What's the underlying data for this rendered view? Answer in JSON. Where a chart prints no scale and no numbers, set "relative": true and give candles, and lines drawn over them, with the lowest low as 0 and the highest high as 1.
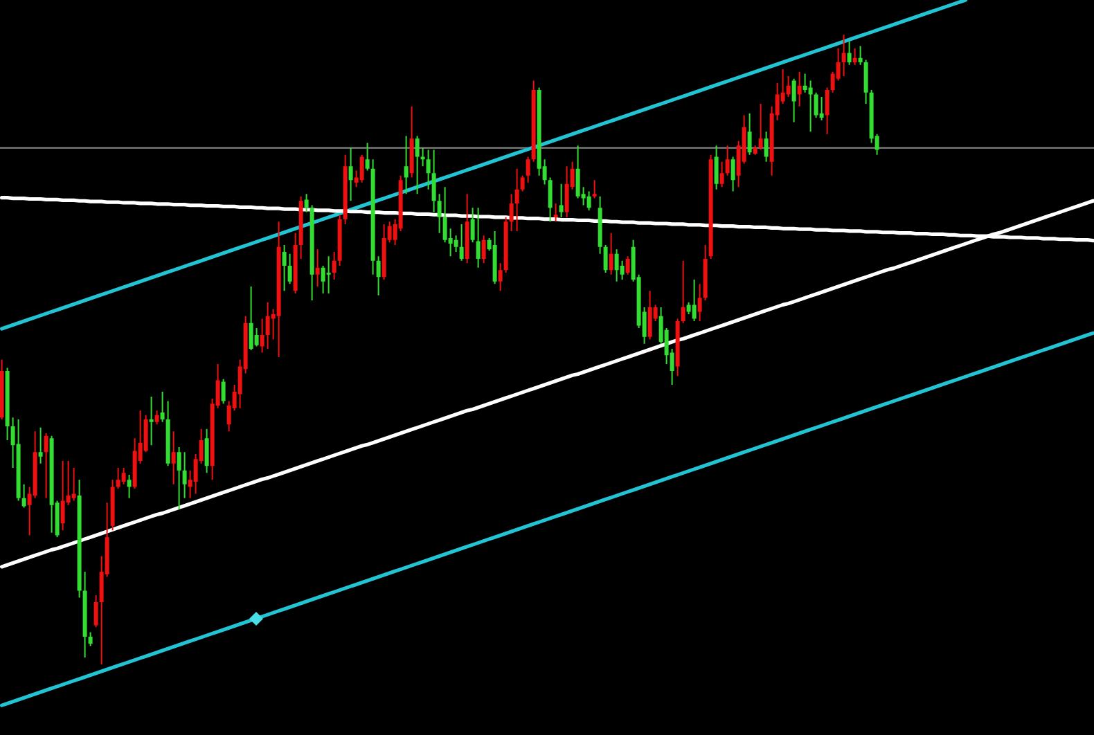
{
  "chart_data": {
    "type": "candlestick",
    "relative": true,
    "categories": [
      null,
      null,
      null,
      null,
      null,
      null,
      null,
      null,
      null,
      null,
      null,
      null,
      null,
      null,
      null,
      null,
      null,
      null,
      null,
      null,
      null,
      null,
      null,
      null,
      null,
      null,
      null,
      null,
      null,
      null,
      null,
      null,
      null,
      null,
      null,
      null,
      null,
      null,
      null,
      null,
      null,
      null,
      null,
      null,
      null,
      null,
      null,
      null,
      null,
      null,
      null,
      null,
      null,
      null,
      null,
      null,
      null,
      null,
      null,
      null,
      null,
      null,
      null,
      null,
      null,
      null,
      null,
      null,
      null,
      null,
      null,
      null,
      null,
      null,
      null,
      null,
      null,
      null,
      null,
      null,
      null,
      null,
      null,
      null,
      null,
      null,
      null,
      null,
      null,
      null,
      null,
      null,
      null,
      null,
      null,
      null,
      null,
      null,
      null,
      null,
      null,
      null,
      null,
      null,
      null,
      null,
      null,
      null,
      null,
      null,
      null,
      null,
      null,
      null,
      null,
      null,
      null,
      null,
      null,
      null,
      null,
      null,
      null,
      null,
      null,
      null,
      null,
      null,
      null,
      null,
      null,
      null,
      null,
      null,
      null,
      null,
      null,
      null,
      null,
      null,
      null,
      null,
      null,
      null,
      null,
      null,
      null,
      null,
      null,
      null,
      null,
      null,
      null,
      null,
      null,
      null,
      null,
      null,
      null,
      null,
      null,
      null,
      null,
      null,
      null,
      null,
      null,
      null,
      null,
      null,
      null,
      null,
      null,
      null,
      null,
      null,
      null,
      null,
      null,
      null,
      null,
      null,
      null,
      null,
      null,
      null,
      null,
      null,
      null,
      null,
      null,
      null,
      null,
      null,
      null,
      null,
      null,
      null
    ],
    "ohlc": [
      [
        0.392,
        0.484,
        0.389,
        0.466
      ],
      [
        0.466,
        0.471,
        0.356,
        0.378
      ],
      [
        0.378,
        0.392,
        0.312,
        0.348
      ],
      [
        0.35,
        0.389,
        0.26,
        0.264
      ],
      [
        0.264,
        0.286,
        0.249,
        0.251
      ],
      [
        0.253,
        0.282,
        0.205,
        0.271
      ],
      [
        0.268,
        0.37,
        0.264,
        0.337
      ],
      [
        0.337,
        0.376,
        0.319,
        0.33
      ],
      [
        0.337,
        0.367,
        0.264,
        0.363
      ],
      [
        0.359,
        0.363,
        0.209,
        0.253
      ],
      [
        0.257,
        0.26,
        0.202,
        0.205
      ],
      [
        0.224,
        0.323,
        0.213,
        0.26
      ],
      [
        0.257,
        0.323,
        0.253,
        0.268
      ],
      [
        0.264,
        0.312,
        0.26,
        0.271
      ],
      [
        0.268,
        0.293,
        0.106,
        0.117
      ],
      [
        0.117,
        0.147,
        0.011,
        0.044
      ],
      [
        0.044,
        0.051,
        0.029,
        0.033
      ],
      [
        0.062,
        0.11,
        0.059,
        0.099
      ],
      [
        0.099,
        0.172,
        0,
        0.147
      ],
      [
        0.143,
        0.257,
        0.139,
        0.202
      ],
      [
        0.22,
        0.293,
        0.213,
        0.282
      ],
      [
        0.282,
        0.312,
        0.279,
        0.293
      ],
      [
        0.29,
        0.312,
        0.286,
        0.304
      ],
      [
        0.293,
        0.301,
        0.264,
        0.282
      ],
      [
        0.282,
        0.359,
        0.279,
        0.339
      ],
      [
        0.323,
        0.403,
        0.319,
        0.352
      ],
      [
        0.339,
        0.396,
        0.337,
        0.389
      ],
      [
        0.389,
        0.425,
        0.348,
        0.385
      ],
      [
        0.385,
        0.403,
        0.381,
        0.396
      ],
      [
        0.4,
        0.433,
        0.385,
        0.389
      ],
      [
        0.389,
        0.418,
        0.315,
        0.319
      ],
      [
        0.319,
        0.37,
        0.286,
        0.337
      ],
      [
        0.337,
        0.345,
        0.246,
        0.308
      ],
      [
        0.308,
        0.337,
        0.264,
        0.286
      ],
      [
        0.282,
        0.308,
        0.264,
        0.293
      ],
      [
        0.29,
        0.334,
        0.271,
        0.326
      ],
      [
        0.323,
        0.374,
        0.319,
        0.356
      ],
      [
        0.359,
        0.374,
        0.304,
        0.315
      ],
      [
        0.315,
        0.422,
        0.293,
        0.414
      ],
      [
        0.411,
        0.477,
        0.407,
        0.451
      ],
      [
        0.449,
        0.453,
        0.414,
        0.418
      ],
      [
        0.381,
        0.418,
        0.37,
        0.411
      ],
      [
        0.407,
        0.444,
        0.403,
        0.433
      ],
      [
        0.429,
        0.484,
        0.407,
        0.473
      ],
      [
        0.469,
        0.553,
        0.462,
        0.542
      ],
      [
        0.542,
        0.6,
        0.499,
        0.501
      ],
      [
        0.523,
        0.534,
        0.505,
        0.507
      ],
      [
        0.505,
        0.549,
        0.495,
        0.523
      ],
      [
        0.523,
        0.575,
        0.501,
        0.553
      ],
      [
        0.549,
        0.564,
        0.516,
        0.556
      ],
      [
        0.553,
        0.703,
        0.488,
        0.663
      ],
      [
        0.655,
        0.666,
        0.593,
        0.633
      ],
      [
        0.633,
        0.652,
        0.604,
        0.608
      ],
      [
        0.593,
        0.685,
        0.589,
        0.666
      ],
      [
        0.666,
        0.743,
        0.644,
        0.736
      ],
      [
        0.738,
        0.747,
        0.718,
        0.725
      ],
      [
        0.725,
        0.729,
        0.578,
        0.619
      ],
      [
        0.619,
        0.659,
        0.6,
        0.63
      ],
      [
        0.63,
        0.633,
        0.589,
        0.608
      ],
      [
        0.622,
        0.648,
        0.589,
        0.619
      ],
      [
        0.622,
        0.655,
        0.611,
        0.641
      ],
      [
        0.641,
        0.714,
        0.633,
        0.707
      ],
      [
        0.707,
        0.809,
        0.699,
        0.791
      ],
      [
        0.791,
        0.82,
        0.736,
        0.769
      ],
      [
        0.765,
        0.784,
        0.758,
        0.773
      ],
      [
        0.769,
        0.809,
        0.765,
        0.806
      ],
      [
        0.802,
        0.828,
        0.784,
        0.787
      ],
      [
        0.787,
        0.802,
        0.619,
        0.641
      ],
      [
        0.641,
        0.648,
        0.586,
        0.615
      ],
      [
        0.615,
        0.699,
        0.611,
        0.677
      ],
      [
        0.674,
        0.703,
        0.67,
        0.696
      ],
      [
        0.674,
        0.707,
        0.666,
        0.699
      ],
      [
        0.692,
        0.776,
        0.688,
        0.769
      ],
      [
        0.791,
        0.839,
        0.747,
        0.773
      ],
      [
        0.78,
        0.886,
        0.773,
        0.835
      ],
      [
        0.835,
        0.839,
        0.747,
        0.806
      ],
      [
        0.806,
        0.82,
        0.791,
        0.802
      ],
      [
        0.802,
        0.817,
        0.754,
        0.78
      ],
      [
        0.78,
        0.817,
        0.718,
        0.736
      ],
      [
        0.736,
        0.747,
        0.685,
        0.71
      ],
      [
        0.71,
        0.758,
        0.67,
        0.674
      ],
      [
        0.677,
        0.692,
        0.648,
        0.668
      ],
      [
        0.674,
        0.681,
        0.655,
        0.663
      ],
      [
        0.663,
        0.699,
        0.641,
        0.644
      ],
      [
        0.644,
        0.747,
        0.637,
        0.703
      ],
      [
        0.707,
        0.725,
        0.67,
        0.674
      ],
      [
        0.672,
        0.725,
        0.63,
        0.644
      ],
      [
        0.644,
        0.681,
        0.637,
        0.674
      ],
      [
        0.674,
        0.677,
        0.657,
        0.659
      ],
      [
        0.666,
        0.688,
        0.604,
        0.608
      ],
      [
        0.608,
        0.637,
        0.593,
        0.626
      ],
      [
        0.626,
        0.71,
        0.622,
        0.703
      ],
      [
        0.703,
        0.747,
        0.688,
        0.732
      ],
      [
        0.732,
        0.787,
        0.688,
        0.754
      ],
      [
        0.754,
        0.776,
        0.751,
        0.773
      ],
      [
        0.776,
        0.806,
        0.765,
        0.802
      ],
      [
        0.802,
        0.927,
        0.798,
        0.912
      ],
      [
        0.912,
        0.916,
        0.776,
        0.787
      ],
      [
        0.791,
        0.802,
        0.762,
        0.769
      ],
      [
        0.769,
        0.773,
        0.703,
        0.725
      ],
      [
        0.71,
        0.732,
        0.703,
        0.714
      ],
      [
        0.729,
        0.763,
        0.71,
        0.718
      ],
      [
        0.718,
        0.791,
        0.71,
        0.763
      ],
      [
        0.758,
        0.798,
        0.754,
        0.787
      ],
      [
        0.787,
        0.824,
        0.74,
        0.743
      ],
      [
        0.747,
        0.758,
        0.729,
        0.74
      ],
      [
        0.743,
        0.751,
        0.721,
        0.725
      ],
      [
        0.743,
        0.769,
        0.74,
        0.747
      ],
      [
        0.725,
        0.743,
        0.652,
        0.663
      ],
      [
        0.663,
        0.666,
        0.622,
        0.626
      ],
      [
        0.626,
        0.685,
        0.619,
        0.652
      ],
      [
        0.652,
        0.659,
        0.608,
        0.626
      ],
      [
        0.633,
        0.641,
        0.611,
        0.619
      ],
      [
        0.622,
        0.648,
        0.619,
        0.644
      ],
      [
        0.663,
        0.674,
        0.608,
        0.611
      ],
      [
        0.615,
        0.619,
        0.534,
        0.538
      ],
      [
        0.56,
        0.567,
        0.509,
        0.52
      ],
      [
        0.52,
        0.593,
        0.516,
        0.567
      ],
      [
        0.549,
        0.571,
        0.545,
        0.567
      ],
      [
        0.553,
        0.567,
        0.509,
        0.512
      ],
      [
        0.531,
        0.534,
        0.477,
        0.491
      ],
      [
        0.495,
        0.501,
        0.444,
        0.466
      ],
      [
        0.473,
        0.549,
        0.458,
        0.545
      ],
      [
        0.545,
        0.641,
        0.542,
        0.567
      ],
      [
        0.571,
        0.575,
        0.556,
        0.56
      ],
      [
        0.571,
        0.611,
        0.545,
        0.549
      ],
      [
        0.56,
        0.604,
        0.545,
        0.582
      ],
      [
        0.582,
        0.666,
        0.578,
        0.644
      ],
      [
        0.648,
        0.809,
        0.644,
        0.802
      ],
      [
        0.806,
        0.824,
        0.754,
        0.763
      ],
      [
        0.763,
        0.798,
        0.758,
        0.78
      ],
      [
        0.78,
        0.824,
        0.776,
        0.802
      ],
      [
        0.802,
        0.806,
        0.751,
        0.769
      ],
      [
        0.776,
        0.831,
        0.758,
        0.824
      ],
      [
        0.798,
        0.872,
        0.795,
        0.853
      ],
      [
        0.846,
        0.875,
        0.809,
        0.813
      ],
      [
        0.811,
        0.824,
        0.809,
        0.82
      ],
      [
        0.82,
        0.89,
        0.817,
        0.835
      ],
      [
        0.835,
        0.846,
        0.798,
        0.806
      ],
      [
        0.798,
        0.886,
        0.776,
        0.875
      ],
      [
        0.872,
        0.923,
        0.864,
        0.905
      ],
      [
        0.894,
        0.945,
        0.89,
        0.908
      ],
      [
        0.905,
        0.934,
        0.901,
        0.919
      ],
      [
        0.927,
        0.93,
        0.861,
        0.894
      ],
      [
        0.905,
        0.941,
        0.886,
        0.919
      ],
      [
        0.919,
        0.938,
        0.908,
        0.912
      ],
      [
        0.916,
        0.927,
        0.846,
        0.905
      ],
      [
        0.905,
        0.908,
        0.868,
        0.872
      ],
      [
        0.875,
        0.901,
        0.864,
        0.868
      ],
      [
        0.872,
        0.916,
        0.842,
        0.912
      ],
      [
        0.912,
        0.941,
        0.908,
        0.938
      ],
      [
        0.93,
        0.978,
        0.927,
        0.956
      ],
      [
        0.956,
        1,
        0.934,
        0.971
      ],
      [
        0.971,
        0.989,
        0.952,
        0.956
      ],
      [
        0.956,
        0.978,
        0.952,
        0.963
      ],
      [
        0.963,
        0.982,
        0.952,
        0.956
      ],
      [
        0.956,
        0.96,
        0.89,
        0.908
      ],
      [
        0.908,
        0.912,
        0.828,
        0.835
      ],
      [
        0.839,
        0.842,
        0.809,
        0.817
      ],
      null,
      null,
      null,
      null,
      null,
      null,
      null,
      null,
      null,
      null,
      null,
      null,
      null,
      null,
      null,
      null,
      null,
      null,
      null,
      null,
      null,
      null,
      null,
      null,
      null,
      null,
      null,
      null,
      null,
      null,
      null,
      null,
      null,
      null,
      null,
      null,
      null,
      null,
      null
    ],
    "colors": [
      "#ee1111",
      "#33dd33",
      "#33dd33",
      "#33dd33",
      "#33dd33",
      "#ee1111",
      "#ee1111",
      "#33dd33",
      "#ee1111",
      "#33dd33",
      "#33dd33",
      "#ee1111",
      "#ee1111",
      "#ee1111",
      "#33dd33",
      "#33dd33",
      "#33dd33",
      "#ee1111",
      "#ee1111",
      "#ee1111",
      "#ee1111",
      "#ee1111",
      "#ee1111",
      "#33dd33",
      "#ee1111",
      "#ee1111",
      "#ee1111",
      "#33dd33",
      "#ee1111",
      "#33dd33",
      "#33dd33",
      "#ee1111",
      "#33dd33",
      "#33dd33",
      "#ee1111",
      "#ee1111",
      "#ee1111",
      "#33dd33",
      "#ee1111",
      "#ee1111",
      "#33dd33",
      "#ee1111",
      "#ee1111",
      "#ee1111",
      "#ee1111",
      "#33dd33",
      "#33dd33",
      "#ee1111",
      "#ee1111",
      "#ee1111",
      "#ee1111",
      "#33dd33",
      "#33dd33",
      "#ee1111",
      "#ee1111",
      "#33dd33",
      "#33dd33",
      "#ee1111",
      "#33dd33",
      "#33dd33",
      "#ee1111",
      "#ee1111",
      "#ee1111",
      "#33dd33",
      "#ee1111",
      "#ee1111",
      "#33dd33",
      "#33dd33",
      "#33dd33",
      "#ee1111",
      "#ee1111",
      "#ee1111",
      "#ee1111",
      "#33dd33",
      "#ee1111",
      "#33dd33",
      "#33dd33",
      "#33dd33",
      "#33dd33",
      "#33dd33",
      "#33dd33",
      "#33dd33",
      "#33dd33",
      "#33dd33",
      "#ee1111",
      "#33dd33",
      "#33dd33",
      "#ee1111",
      "#33dd33",
      "#33dd33",
      "#ee1111",
      "#ee1111",
      "#ee1111",
      "#ee1111",
      "#ee1111",
      "#ee1111",
      "#ee1111",
      "#33dd33",
      "#33dd33",
      "#33dd33",
      "#ee1111",
      "#33dd33",
      "#ee1111",
      "#ee1111",
      "#33dd33",
      "#33dd33",
      "#33dd33",
      "#ee1111",
      "#33dd33",
      "#33dd33",
      "#ee1111",
      "#33dd33",
      "#33dd33",
      "#ee1111",
      "#33dd33",
      "#33dd33",
      "#33dd33",
      "#ee1111",
      "#ee1111",
      "#33dd33",
      "#33dd33",
      "#33dd33",
      "#ee1111",
      "#ee1111",
      "#33dd33",
      "#33dd33",
      "#ee1111",
      "#ee1111",
      "#ee1111",
      "#33dd33",
      "#ee1111",
      "#ee1111",
      "#33dd33",
      "#ee1111",
      "#ee1111",
      "#33dd33",
      "#ee1111",
      "#ee1111",
      "#33dd33",
      "#ee1111",
      "#ee1111",
      "#ee1111",
      "#ee1111",
      "#33dd33",
      "#ee1111",
      "#33dd33",
      "#33dd33",
      "#33dd33",
      "#33dd33",
      "#ee1111",
      "#ee1111",
      "#ee1111",
      "#ee1111",
      "#33dd33",
      "#ee1111",
      "#33dd33",
      "#33dd33",
      "#33dd33",
      "#33dd33",
      null,
      null,
      null,
      null,
      null,
      null,
      null,
      null,
      null,
      null,
      null,
      null,
      null,
      null,
      null,
      null,
      null,
      null,
      null,
      null,
      null,
      null,
      null,
      null,
      null,
      null,
      null,
      null,
      null,
      null,
      null,
      null,
      null,
      null,
      null,
      null,
      null,
      null,
      null
    ],
    "series": [
      {
        "type": "line",
        "color": "#22c4d4",
        "values": [
          0.533,
          0.536,
          0.539,
          0.542,
          0.545,
          0.548,
          0.551,
          0.554,
          0.557,
          0.56,
          0.563,
          0.566,
          0.569,
          0.572,
          0.575,
          0.578,
          0.581,
          0.584,
          0.587,
          0.59,
          0.593,
          0.596,
          0.599,
          0.602,
          0.605,
          0.608,
          0.611,
          0.614,
          0.617,
          0.62,
          0.623,
          0.626,
          0.629,
          0.632,
          0.635,
          0.638,
          0.641,
          0.644,
          0.647,
          0.65,
          0.653,
          0.656,
          0.659,
          0.662,
          0.665,
          0.668,
          0.671,
          0.674,
          0.677,
          0.68,
          0.683,
          0.686,
          0.689,
          0.692,
          0.695,
          0.698,
          0.701,
          0.704,
          0.707,
          0.71,
          0.713,
          0.716,
          0.719,
          0.722,
          0.725,
          0.728,
          0.731,
          0.734,
          0.737,
          0.74,
          0.743,
          0.746,
          0.749,
          0.752,
          0.755,
          0.758,
          0.761,
          0.764,
          0.767,
          0.77,
          0.773,
          0.776,
          0.779,
          0.782,
          0.785,
          0.788,
          0.791,
          0.794,
          0.797,
          0.8,
          0.803,
          0.806,
          0.809,
          0.812,
          0.815,
          0.818,
          0.821,
          0.824,
          0.827,
          0.83,
          0.833,
          0.836,
          0.839,
          0.842,
          0.845,
          0.848,
          0.851,
          0.854,
          0.857,
          0.86,
          0.863,
          0.866,
          0.869,
          0.872,
          0.875,
          0.878,
          0.881,
          0.884,
          0.887,
          0.89,
          0.893,
          0.896,
          0.899,
          0.902,
          0.905,
          0.908,
          0.911,
          0.914,
          0.917,
          0.92,
          0.923,
          0.926,
          0.929,
          0.932,
          0.935,
          0.938,
          0.941,
          0.944,
          0.947,
          0.95,
          0.953,
          0.956,
          0.959,
          0.962,
          0.965,
          0.968,
          0.971,
          0.974,
          0.977,
          0.98,
          0.983,
          0.986,
          0.989,
          0.992,
          0.995,
          0.998,
          1.001,
          1.004,
          1.007,
          1.01,
          1.013,
          1.016,
          1.019,
          1.022,
          1.025,
          1.028,
          1.031,
          1.034,
          1.037,
          1.04,
          1.043,
          1.046,
          1.049,
          1.052,
          1.055,
          null,
          null,
          null,
          null,
          null,
          null,
          null,
          null,
          null,
          null,
          null,
          null,
          null,
          null,
          null,
          null,
          null,
          null,
          null,
          null,
          null,
          null,
          null
        ]
      },
      {
        "type": "line",
        "color": "#22c4d4",
        "values": [
          -0.065,
          -0.062,
          -0.059,
          -0.056,
          -0.053,
          -0.05,
          -0.047,
          -0.044,
          -0.041,
          -0.038,
          -0.035,
          -0.032,
          -0.029,
          -0.026,
          -0.023,
          -0.02,
          -0.017,
          -0.014,
          -0.011,
          -0.008,
          -0.005,
          -0.002,
          0.001,
          0.004,
          0.007,
          0.01,
          0.013,
          0.016,
          0.019,
          0.022,
          0.025,
          0.028,
          0.031,
          0.034,
          0.037,
          0.04,
          0.043,
          0.046,
          0.049,
          0.052,
          0.055,
          0.058,
          0.061,
          0.064,
          0.067,
          0.07,
          0.073,
          0.076,
          0.079,
          0.082,
          0.085,
          0.088,
          0.091,
          0.094,
          0.097,
          0.1,
          0.103,
          0.106,
          0.109,
          0.112,
          0.115,
          0.118,
          0.121,
          0.124,
          0.127,
          0.13,
          0.133,
          0.136,
          0.139,
          0.142,
          0.145,
          0.148,
          0.151,
          0.154,
          0.157,
          0.16,
          0.163,
          0.166,
          0.169,
          0.172,
          0.175,
          0.178,
          0.181,
          0.184,
          0.187,
          0.19,
          0.193,
          0.196,
          0.199,
          0.202,
          0.205,
          0.208,
          0.211,
          0.214,
          0.217,
          0.22,
          0.223,
          0.226,
          0.229,
          0.232,
          0.235,
          0.238,
          0.241,
          0.244,
          0.247,
          0.25,
          0.253,
          0.256,
          0.259,
          0.262,
          0.265,
          0.268,
          0.271,
          0.274,
          0.277,
          0.28,
          0.283,
          0.286,
          0.289,
          0.292,
          0.295,
          0.298,
          0.301,
          0.304,
          0.307,
          0.31,
          0.313,
          0.316,
          0.319,
          0.322,
          0.325,
          0.328,
          0.331,
          0.334,
          0.337,
          0.34,
          0.343,
          0.346,
          0.349,
          0.352,
          0.355,
          0.358,
          0.361,
          0.364,
          0.367,
          0.37,
          0.373,
          0.376,
          0.379,
          0.382,
          0.385,
          0.388,
          0.391,
          0.394,
          0.397,
          0.4,
          0.403,
          0.406,
          0.409,
          0.412,
          0.415,
          0.418,
          0.421,
          0.424,
          0.427,
          0.43,
          0.433,
          0.436,
          0.439,
          0.442,
          0.445,
          0.448,
          0.451,
          0.454,
          0.457,
          0.46,
          0.463,
          0.466,
          0.469,
          0.472,
          0.475,
          0.478,
          0.481,
          0.484,
          0.487,
          0.49,
          0.493,
          0.496,
          0.499,
          0.502,
          0.505,
          0.508,
          0.511,
          0.514,
          0.517,
          0.52,
          0.523,
          0.526
        ]
      },
      {
        "type": "line",
        "color": "#ffffff",
        "values": [
          0.155,
          0.158,
          0.161,
          0.164,
          0.167,
          0.17,
          0.173,
          0.176,
          0.179,
          0.182,
          0.184,
          0.187,
          0.19,
          0.193,
          0.196,
          0.199,
          0.202,
          0.205,
          0.208,
          0.211,
          0.214,
          0.217,
          0.22,
          0.223,
          0.226,
          0.229,
          0.232,
          0.235,
          0.238,
          0.24,
          0.243,
          0.246,
          0.249,
          0.252,
          0.255,
          0.258,
          0.261,
          0.264,
          0.267,
          0.27,
          0.273,
          0.276,
          0.279,
          0.282,
          0.285,
          0.288,
          0.291,
          0.294,
          0.296,
          0.299,
          0.302,
          0.305,
          0.308,
          0.311,
          0.314,
          0.317,
          0.32,
          0.323,
          0.326,
          0.329,
          0.332,
          0.335,
          0.338,
          0.341,
          0.344,
          0.347,
          0.349,
          0.352,
          0.355,
          0.358,
          0.361,
          0.364,
          0.367,
          0.37,
          0.373,
          0.376,
          0.379,
          0.382,
          0.385,
          0.388,
          0.391,
          0.394,
          0.397,
          0.4,
          0.403,
          0.405,
          0.408,
          0.411,
          0.414,
          0.417,
          0.42,
          0.423,
          0.426,
          0.429,
          0.432,
          0.435,
          0.438,
          0.441,
          0.444,
          0.447,
          0.45,
          0.453,
          0.456,
          0.459,
          0.461,
          0.464,
          0.467,
          0.47,
          0.473,
          0.476,
          0.479,
          0.482,
          0.485,
          0.488,
          0.491,
          0.494,
          0.497,
          0.5,
          0.503,
          0.506,
          0.509,
          0.512,
          0.515,
          0.517,
          0.52,
          0.523,
          0.526,
          0.529,
          0.532,
          0.535,
          0.538,
          0.541,
          0.544,
          0.547,
          0.55,
          0.553,
          0.556,
          0.559,
          0.562,
          0.565,
          0.568,
          0.571,
          0.573,
          0.576,
          0.579,
          0.582,
          0.585,
          0.588,
          0.591,
          0.594,
          0.597,
          0.6,
          0.603,
          0.606,
          0.609,
          0.612,
          0.615,
          0.618,
          0.621,
          0.624,
          0.627,
          0.629,
          0.632,
          0.635,
          0.638,
          0.641,
          0.644,
          0.647,
          0.65,
          0.653,
          0.656,
          0.659,
          0.662,
          0.665,
          0.668,
          0.671,
          0.674,
          0.677,
          0.68,
          0.683,
          0.685,
          0.688,
          0.691,
          0.694,
          0.697,
          0.7,
          0.703,
          0.706,
          0.709,
          0.712,
          0.715,
          0.718,
          0.721,
          0.724,
          0.727,
          0.73,
          0.733,
          0.736
        ]
      },
      {
        "type": "line",
        "color": "#ffffff",
        "values": [
          0.741,
          0.741,
          0.74,
          0.74,
          0.74,
          0.739,
          0.739,
          0.739,
          0.738,
          0.738,
          0.738,
          0.737,
          0.737,
          0.737,
          0.736,
          0.736,
          0.735,
          0.735,
          0.735,
          0.734,
          0.734,
          0.734,
          0.733,
          0.733,
          0.733,
          0.732,
          0.732,
          0.732,
          0.731,
          0.731,
          0.731,
          0.73,
          0.73,
          0.73,
          0.729,
          0.729,
          0.729,
          0.728,
          0.728,
          0.728,
          0.727,
          0.727,
          0.727,
          0.726,
          0.726,
          0.726,
          0.725,
          0.725,
          0.724,
          0.724,
          0.724,
          0.723,
          0.723,
          0.723,
          0.722,
          0.722,
          0.722,
          0.721,
          0.721,
          0.721,
          0.72,
          0.72,
          0.72,
          0.719,
          0.719,
          0.719,
          0.718,
          0.718,
          0.718,
          0.717,
          0.717,
          0.717,
          0.716,
          0.716,
          0.716,
          0.715,
          0.715,
          0.715,
          0.714,
          0.714,
          0.713,
          0.713,
          0.713,
          0.712,
          0.712,
          0.712,
          0.711,
          0.711,
          0.711,
          0.71,
          0.71,
          0.71,
          0.709,
          0.709,
          0.709,
          0.708,
          0.708,
          0.708,
          0.707,
          0.707,
          0.707,
          0.706,
          0.706,
          0.706,
          0.705,
          0.705,
          0.705,
          0.704,
          0.704,
          0.704,
          0.703,
          0.703,
          0.702,
          0.702,
          0.702,
          0.701,
          0.701,
          0.701,
          0.7,
          0.7,
          0.7,
          0.699,
          0.699,
          0.699,
          0.698,
          0.698,
          0.698,
          0.697,
          0.697,
          0.697,
          0.696,
          0.696,
          0.696,
          0.695,
          0.695,
          0.695,
          0.694,
          0.694,
          0.694,
          0.693,
          0.693,
          0.692,
          0.692,
          0.692,
          0.691,
          0.691,
          0.691,
          0.69,
          0.69,
          0.69,
          0.689,
          0.689,
          0.689,
          0.688,
          0.688,
          0.688,
          0.687,
          0.687,
          0.687,
          0.686,
          0.686,
          0.686,
          0.685,
          0.685,
          0.685,
          0.684,
          0.684,
          0.684,
          0.683,
          0.683,
          0.683,
          0.682,
          0.682,
          0.681,
          0.681,
          0.681,
          0.68,
          0.68,
          0.68,
          0.679,
          0.679,
          0.679,
          0.678,
          0.678,
          0.678,
          0.677,
          0.677,
          0.677,
          0.676,
          0.676,
          0.676,
          0.675,
          0.675,
          0.675,
          0.674,
          0.674,
          0.674,
          0.673
        ]
      }
    ],
    "ref_lines": [
      {
        "axis": "y",
        "value": 0.82,
        "color": "#8c8c8c"
      }
    ]
  }
}
